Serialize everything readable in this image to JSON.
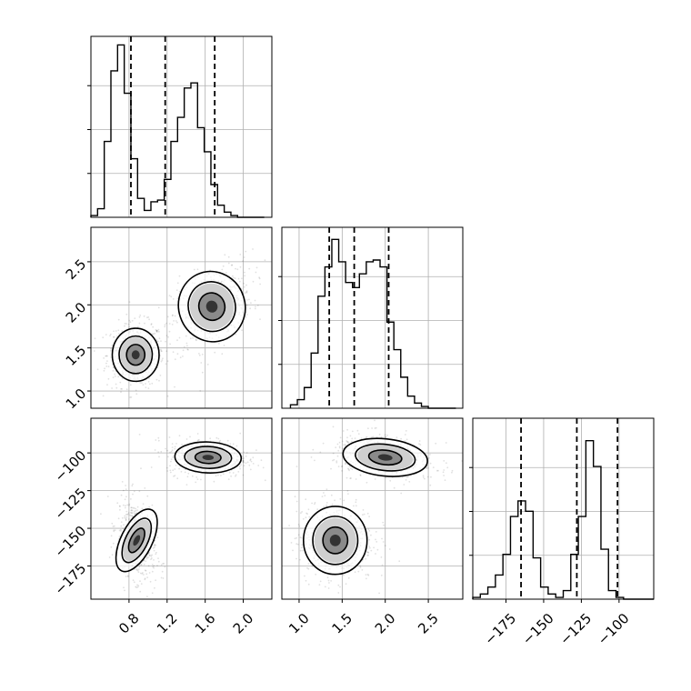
{
  "chart_data": {
    "type": "corner",
    "parameters": [
      {
        "id": "p1",
        "range": [
          0.4,
          2.3
        ],
        "ticks": [
          0.8,
          1.2,
          1.6,
          2.0
        ],
        "tick_labels": [
          "0.8",
          "1.2",
          "1.6",
          "2.0"
        ]
      },
      {
        "id": "p2",
        "range": [
          0.8,
          2.9
        ],
        "ticks": [
          1.0,
          1.5,
          2.0,
          2.5
        ],
        "tick_labels": [
          "1.0",
          "1.5",
          "2.0",
          "2.5"
        ]
      },
      {
        "id": "p3",
        "range": [
          -197,
          -77
        ],
        "ticks": [
          -175,
          -150,
          -125,
          -100
        ],
        "tick_labels": [
          "−175",
          "−150",
          "−125",
          "−100"
        ]
      }
    ],
    "grid": true,
    "quantiles": {
      "p1": [
        0.82,
        1.18,
        1.7
      ],
      "p2": [
        1.35,
        1.64,
        2.04
      ],
      "p3": [
        -165,
        -128,
        -101
      ]
    },
    "histograms": {
      "p1": {
        "edges": [
          0.4,
          0.47,
          0.54,
          0.61,
          0.68,
          0.75,
          0.82,
          0.89,
          0.96,
          1.03,
          1.1,
          1.17,
          1.24,
          1.31,
          1.38,
          1.45,
          1.52,
          1.59,
          1.66,
          1.73,
          1.8,
          1.87,
          1.94,
          2.01,
          2.08,
          2.15,
          2.22
        ],
        "counts": [
          0.01,
          0.05,
          0.44,
          0.85,
          1.0,
          0.72,
          0.34,
          0.11,
          0.04,
          0.09,
          0.1,
          0.22,
          0.44,
          0.58,
          0.75,
          0.78,
          0.52,
          0.38,
          0.19,
          0.07,
          0.03,
          0.01,
          0,
          0,
          0,
          0
        ]
      },
      "p2": {
        "edges": [
          0.9,
          0.98,
          1.06,
          1.14,
          1.22,
          1.3,
          1.38,
          1.46,
          1.54,
          1.62,
          1.7,
          1.78,
          1.86,
          1.94,
          2.02,
          2.1,
          2.18,
          2.26,
          2.34,
          2.42,
          2.5,
          2.58,
          2.66,
          2.74,
          2.82
        ],
        "counts": [
          0.02,
          0.05,
          0.12,
          0.32,
          0.65,
          0.82,
          0.98,
          0.85,
          0.73,
          0.7,
          0.78,
          0.85,
          0.86,
          0.82,
          0.5,
          0.34,
          0.18,
          0.07,
          0.03,
          0.01,
          0,
          0,
          0,
          0
        ]
      },
      "p3": {
        "edges": [
          -197,
          -192,
          -187,
          -182,
          -177,
          -172,
          -167,
          -162,
          -157,
          -152,
          -147,
          -142,
          -137,
          -132,
          -127,
          -122,
          -117,
          -112,
          -107,
          -102,
          -97,
          -92,
          -87,
          -82,
          -77
        ],
        "counts": [
          0.01,
          0.03,
          0.07,
          0.14,
          0.26,
          0.48,
          0.57,
          0.51,
          0.24,
          0.07,
          0.03,
          0.01,
          0.05,
          0.26,
          0.48,
          0.92,
          0.77,
          0.29,
          0.05,
          0.01,
          0,
          0,
          0,
          0
        ]
      }
    },
    "clusters": {
      "p1_p2": [
        {
          "cx": 0.87,
          "cy": 1.42,
          "sx": 0.12,
          "sy": 0.15,
          "rho": 0.0
        },
        {
          "cx": 1.67,
          "cy": 1.98,
          "sx": 0.17,
          "sy": 0.2,
          "rho": 0.4
        }
      ],
      "p1_p3": [
        {
          "cx": 0.88,
          "cy": -158,
          "sx": 0.08,
          "sy": 11,
          "rho": -0.3
        },
        {
          "cx": 1.63,
          "cy": -103,
          "sx": 0.17,
          "sy": 5,
          "rho": -0.1
        }
      ],
      "p2_p3": [
        {
          "cx": 1.42,
          "cy": -158,
          "sx": 0.18,
          "sy": 11,
          "rho": 0.0
        },
        {
          "cx": 2.0,
          "cy": -103,
          "sx": 0.24,
          "sy": 6,
          "rho": -0.3
        }
      ]
    }
  }
}
